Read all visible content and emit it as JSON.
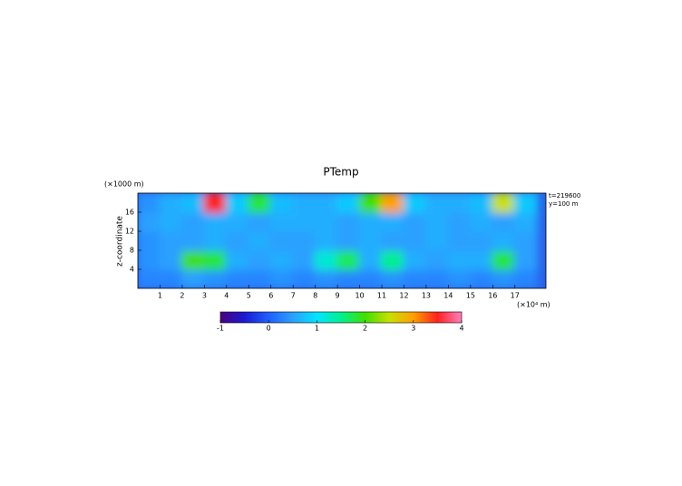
{
  "chart_data": {
    "type": "heatmap",
    "title": "PTemp",
    "y_unit": "(×1000 m)",
    "y_label": "z-coordinate",
    "x_unit": "(×10⁴ m)",
    "annotations": [
      "t=219600",
      "y=100 m"
    ],
    "xlim": [
      0,
      18.4
    ],
    "ylim": [
      0,
      20
    ],
    "xticks": [
      1,
      2,
      3,
      4,
      5,
      6,
      7,
      8,
      9,
      10,
      11,
      12,
      13,
      14,
      15,
      16,
      17
    ],
    "yticks": [
      4,
      8,
      12,
      16
    ],
    "x": [
      0.5,
      1.5,
      2.5,
      3.5,
      4.5,
      5.5,
      6.5,
      7.5,
      8.5,
      9.5,
      10.5,
      11.5,
      12.5,
      13.5,
      14.5,
      15.5,
      16.5,
      17.5
    ],
    "y": [
      2,
      6,
      10,
      14,
      18
    ],
    "z": [
      [
        0.3,
        0.3,
        0.5,
        0.4,
        0.3,
        0.3,
        0.4,
        0.3,
        0.4,
        0.3,
        0.3,
        0.4,
        0.3,
        0.3,
        0.4,
        0.3,
        0.4,
        0.3
      ],
      [
        0.4,
        0.5,
        2.0,
        1.8,
        0.6,
        0.5,
        0.6,
        0.5,
        1.2,
        1.7,
        0.6,
        1.5,
        0.6,
        0.5,
        0.6,
        0.6,
        1.8,
        0.5
      ],
      [
        0.4,
        0.5,
        0.5,
        0.6,
        0.5,
        0.6,
        0.5,
        0.5,
        0.6,
        0.5,
        0.6,
        0.5,
        0.5,
        0.6,
        0.5,
        0.5,
        0.6,
        0.5
      ],
      [
        0.5,
        0.6,
        0.5,
        0.6,
        0.6,
        0.5,
        0.6,
        0.6,
        0.6,
        0.5,
        0.6,
        0.6,
        0.5,
        0.6,
        0.5,
        0.6,
        0.5,
        0.6
      ],
      [
        0.4,
        0.6,
        0.7,
        3.5,
        0.8,
        1.8,
        0.7,
        0.6,
        0.6,
        0.8,
        2.0,
        3.0,
        0.8,
        0.6,
        0.6,
        0.7,
        2.5,
        0.8
      ]
    ],
    "clim": [
      -1,
      4
    ],
    "cticks": [
      -1,
      0,
      1,
      2,
      3,
      4
    ],
    "colorscale": [
      "#4b0082",
      "#1a1ad0",
      "#1f5fff",
      "#2aa0ff",
      "#00e5ff",
      "#00f090",
      "#40e000",
      "#c8e000",
      "#ffa000",
      "#ff2020",
      "#ff80c0"
    ]
  }
}
